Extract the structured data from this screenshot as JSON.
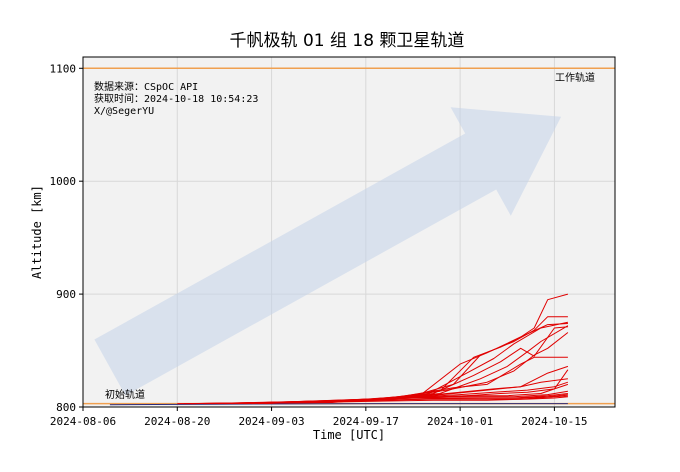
{
  "chart_data": {
    "type": "line",
    "title": "千帆极轨 01 组 18 颗卫星轨道",
    "xlabel": "Time [UTC]",
    "ylabel": "Altitude [km]",
    "x_range": [
      "2024-08-06",
      "2024-10-24"
    ],
    "ylim": [
      800,
      1110
    ],
    "x_ticks": [
      "2024-08-06",
      "2024-08-20",
      "2024-09-03",
      "2024-09-17",
      "2024-10-01",
      "2024-10-15"
    ],
    "y_ticks": [
      800,
      900,
      1000,
      1100
    ],
    "grid": true,
    "source_lines": [
      "数据来源：CSpOC API",
      "获取时间：2024-10-18 10:54:23",
      "X/@SegerYU"
    ],
    "reference_lines": [
      {
        "label": "工作轨道",
        "y": 1100,
        "color": "#f0a050"
      },
      {
        "label": "初始轨道",
        "y": 803,
        "color": "#f0a050"
      }
    ],
    "trend_arrow": {
      "from": [
        "2024-08-10",
        835
      ],
      "to": [
        "2024-10-16",
        1057
      ],
      "color": "#c5d3ea"
    },
    "colors": {
      "series": "#e00000",
      "baseline_series": "#2c2c7a",
      "plot_bg": "#f2f2f2",
      "grid": "#d8d8d8"
    },
    "series": [
      {
        "values": [
          [
            "2024-08-10",
            802
          ],
          [
            "2024-08-25",
            802.5
          ],
          [
            "2024-09-20",
            803
          ],
          [
            "2024-10-17",
            803
          ]
        ],
        "color": "#2c2c7a"
      },
      {
        "values": [
          [
            "2024-08-20",
            803
          ],
          [
            "2024-09-10",
            804
          ],
          [
            "2024-09-22",
            809
          ],
          [
            "2024-09-28",
            814
          ],
          [
            "2024-10-03",
            844
          ],
          [
            "2024-10-07",
            853
          ],
          [
            "2024-10-10",
            862
          ],
          [
            "2024-10-12",
            870
          ],
          [
            "2024-10-14",
            895
          ],
          [
            "2024-10-17",
            900
          ]
        ]
      },
      {
        "values": [
          [
            "2024-08-21",
            803
          ],
          [
            "2024-09-12",
            804
          ],
          [
            "2024-09-24",
            810
          ],
          [
            "2024-09-30",
            820
          ],
          [
            "2024-10-04",
            846
          ],
          [
            "2024-10-09",
            858
          ],
          [
            "2024-10-12",
            868
          ],
          [
            "2024-10-14",
            880
          ],
          [
            "2024-10-17",
            880
          ]
        ]
      },
      {
        "values": [
          [
            "2024-08-22",
            803
          ],
          [
            "2024-09-14",
            805
          ],
          [
            "2024-09-25",
            810
          ],
          [
            "2024-10-01",
            838
          ],
          [
            "2024-10-05",
            848
          ],
          [
            "2024-10-10",
            862
          ],
          [
            "2024-10-14",
            873
          ],
          [
            "2024-10-17",
            874
          ]
        ]
      },
      {
        "values": [
          [
            "2024-08-22",
            803
          ],
          [
            "2024-09-15",
            805
          ],
          [
            "2024-09-26",
            811
          ],
          [
            "2024-10-02",
            830
          ],
          [
            "2024-10-06",
            843
          ],
          [
            "2024-10-09",
            856
          ],
          [
            "2024-10-13",
            870
          ],
          [
            "2024-10-17",
            875
          ]
        ]
      },
      {
        "values": [
          [
            "2024-08-24",
            803
          ],
          [
            "2024-09-16",
            806
          ],
          [
            "2024-09-27",
            812
          ],
          [
            "2024-10-03",
            828
          ],
          [
            "2024-10-07",
            840
          ],
          [
            "2024-10-10",
            852
          ],
          [
            "2024-10-12",
            845
          ],
          [
            "2024-10-15",
            870
          ],
          [
            "2024-10-17",
            871
          ]
        ]
      },
      {
        "values": [
          [
            "2024-08-25",
            803
          ],
          [
            "2024-09-18",
            806
          ],
          [
            "2024-09-28",
            812
          ],
          [
            "2024-10-04",
            825
          ],
          [
            "2024-10-08",
            836
          ],
          [
            "2024-10-11",
            849
          ],
          [
            "2024-10-13",
            858
          ],
          [
            "2024-10-17",
            872
          ]
        ]
      },
      {
        "values": [
          [
            "2024-08-26",
            803
          ],
          [
            "2024-09-18",
            806
          ],
          [
            "2024-09-29",
            815
          ],
          [
            "2024-10-05",
            822
          ],
          [
            "2024-10-09",
            832
          ],
          [
            "2024-10-12",
            846
          ],
          [
            "2024-10-14",
            852
          ],
          [
            "2024-10-17",
            866
          ]
        ]
      },
      {
        "values": [
          [
            "2024-08-27",
            803
          ],
          [
            "2024-09-20",
            807
          ],
          [
            "2024-09-30",
            817
          ],
          [
            "2024-10-05",
            820
          ],
          [
            "2024-10-10",
            838
          ],
          [
            "2024-10-12",
            844
          ],
          [
            "2024-10-17",
            844
          ]
        ]
      },
      {
        "values": [
          [
            "2024-08-28",
            803
          ],
          [
            "2024-09-21",
            807
          ],
          [
            "2024-09-30",
            812
          ],
          [
            "2024-10-05",
            815
          ],
          [
            "2024-10-10",
            818
          ],
          [
            "2024-10-14",
            830
          ],
          [
            "2024-10-17",
            836
          ]
        ]
      },
      {
        "values": [
          [
            "2024-08-29",
            803
          ],
          [
            "2024-09-22",
            808
          ],
          [
            "2024-10-01",
            813
          ],
          [
            "2024-10-06",
            816
          ],
          [
            "2024-10-10",
            818
          ],
          [
            "2024-10-13",
            822
          ],
          [
            "2024-10-17",
            825
          ]
        ]
      },
      {
        "values": [
          [
            "2024-08-30",
            803
          ],
          [
            "2024-09-22",
            808
          ],
          [
            "2024-10-01",
            811
          ],
          [
            "2024-10-06",
            813
          ],
          [
            "2024-10-11",
            815
          ],
          [
            "2024-10-15",
            818
          ],
          [
            "2024-10-17",
            822
          ]
        ]
      },
      {
        "values": [
          [
            "2024-08-31",
            803
          ],
          [
            "2024-09-23",
            808
          ],
          [
            "2024-10-02",
            810
          ],
          [
            "2024-10-07",
            812
          ],
          [
            "2024-10-11",
            813
          ],
          [
            "2024-10-15",
            816
          ],
          [
            "2024-10-17",
            820
          ]
        ]
      },
      {
        "values": [
          [
            "2024-09-01",
            803
          ],
          [
            "2024-09-24",
            808
          ],
          [
            "2024-10-02",
            810
          ],
          [
            "2024-10-08",
            810
          ],
          [
            "2024-10-13",
            812
          ],
          [
            "2024-10-15",
            816
          ],
          [
            "2024-10-17",
            833
          ]
        ]
      },
      {
        "values": [
          [
            "2024-09-02",
            803
          ],
          [
            "2024-09-25",
            809
          ],
          [
            "2024-10-03",
            809
          ],
          [
            "2024-10-09",
            809
          ],
          [
            "2024-10-14",
            811
          ],
          [
            "2024-10-17",
            814
          ]
        ]
      },
      {
        "values": [
          [
            "2024-09-04",
            804
          ],
          [
            "2024-09-25",
            808
          ],
          [
            "2024-10-03",
            808
          ],
          [
            "2024-10-09",
            808
          ],
          [
            "2024-10-14",
            810
          ],
          [
            "2024-10-17",
            812
          ]
        ]
      },
      {
        "values": [
          [
            "2024-09-05",
            804
          ],
          [
            "2024-09-26",
            807
          ],
          [
            "2024-10-04",
            808
          ],
          [
            "2024-10-10",
            808
          ],
          [
            "2024-10-14",
            809
          ],
          [
            "2024-10-17",
            811
          ]
        ]
      },
      {
        "values": [
          [
            "2024-09-06",
            804
          ],
          [
            "2024-09-26",
            807
          ],
          [
            "2024-10-04",
            807
          ],
          [
            "2024-10-10",
            807
          ],
          [
            "2024-10-15",
            809
          ],
          [
            "2024-10-17",
            810
          ]
        ]
      },
      {
        "values": [
          [
            "2024-09-08",
            804
          ],
          [
            "2024-09-27",
            806
          ],
          [
            "2024-10-05",
            806
          ],
          [
            "2024-10-11",
            807
          ],
          [
            "2024-10-15",
            808
          ],
          [
            "2024-10-17",
            809
          ]
        ]
      }
    ]
  }
}
